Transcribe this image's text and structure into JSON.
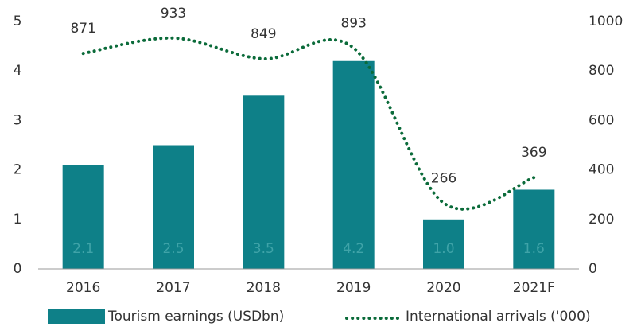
{
  "chart_data": {
    "type": "bar",
    "categories": [
      "2016",
      "2017",
      "2018",
      "2019",
      "2020",
      "2021F"
    ],
    "series": [
      {
        "name": "Tourism earnings (USDbn)",
        "type": "bar",
        "color": "#0e8088",
        "label_color": "#3fa3a8",
        "values": [
          2.1,
          2.5,
          3.5,
          4.2,
          1.0,
          1.6
        ],
        "value_labels": [
          "2.1",
          "2.5",
          "3.5",
          "4.2",
          "1.0",
          "1.6"
        ]
      },
      {
        "name": "International arrivals ('000)",
        "type": "line",
        "axis": "y2",
        "color": "#0b6b3a",
        "values": [
          871,
          933,
          849,
          893,
          266,
          369
        ]
      }
    ],
    "ylim": [
      0,
      5
    ],
    "yticks": [
      0,
      1,
      2,
      3,
      4,
      5
    ],
    "y2lim": [
      0,
      1000
    ],
    "y2ticks": [
      0,
      200,
      400,
      600,
      800,
      1000
    ],
    "grid": false
  }
}
